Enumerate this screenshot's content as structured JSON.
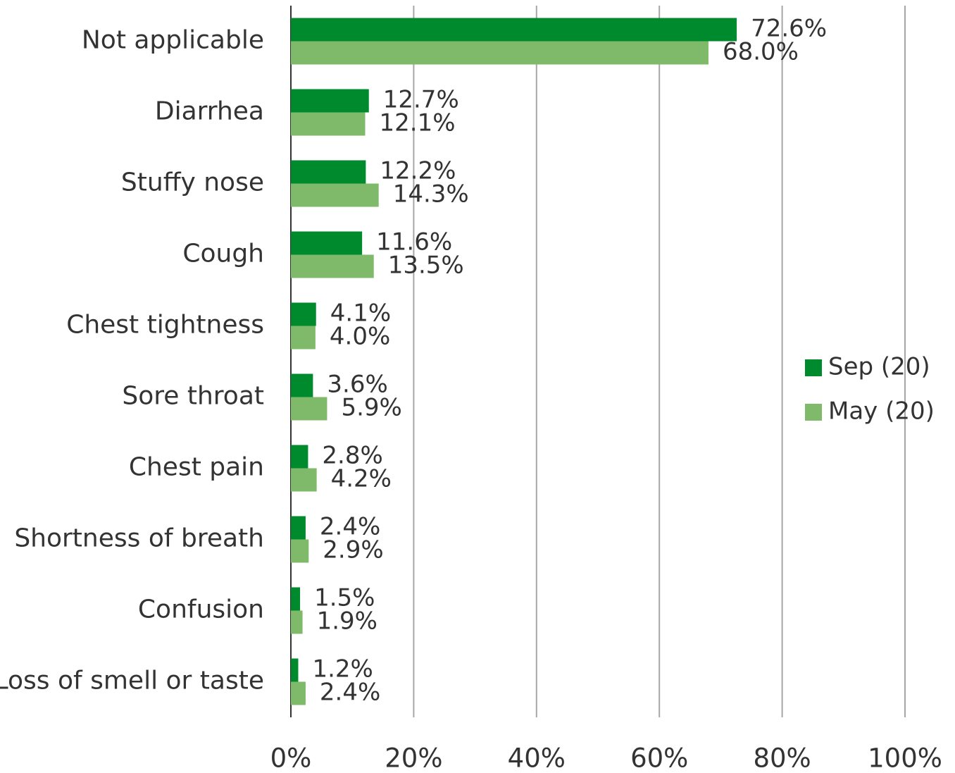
{
  "chart_data": {
    "type": "hbar",
    "categories": [
      "Not applicable",
      "Diarrhea",
      "Stuffy nose",
      "Cough",
      "Chest tightness",
      "Sore throat",
      "Chest pain",
      "Shortness of breath",
      "Confusion",
      "Loss of smell or taste"
    ],
    "series": [
      {
        "name": "Sep (20)",
        "color": "#008a2e",
        "values": [
          72.6,
          12.7,
          12.2,
          11.6,
          4.1,
          3.6,
          2.8,
          2.4,
          1.5,
          1.2
        ],
        "value_labels": [
          "72.6%",
          "12.7%",
          "12.2%",
          "11.6%",
          "4.1%",
          "3.6%",
          "2.8%",
          "2.4%",
          "1.5%",
          "1.2%"
        ]
      },
      {
        "name": "May (20)",
        "color": "#7fba6a",
        "values": [
          68.0,
          12.1,
          14.3,
          13.5,
          4.0,
          5.9,
          4.2,
          2.9,
          1.9,
          2.4
        ],
        "value_labels": [
          "68.0%",
          "12.1%",
          "14.3%",
          "13.5%",
          "4.0%",
          "5.9%",
          "4.2%",
          "2.9%",
          "1.9%",
          "2.4%"
        ]
      }
    ],
    "xlim": [
      0,
      100
    ],
    "xticks": [
      {
        "value": 0,
        "label": "0%"
      },
      {
        "value": 20,
        "label": "20%"
      },
      {
        "value": 40,
        "label": "40%"
      },
      {
        "value": 60,
        "label": "60%"
      },
      {
        "value": 80,
        "label": "80%"
      },
      {
        "value": 100,
        "label": "100%"
      }
    ],
    "grid": true,
    "legend": "right"
  }
}
